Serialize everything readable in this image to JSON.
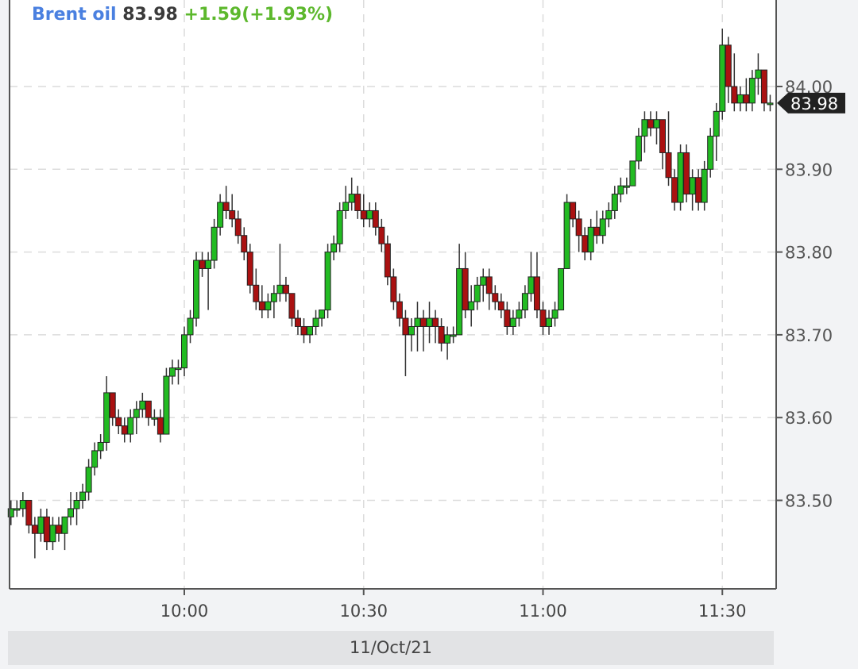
{
  "header": {
    "symbol": "Brent oil",
    "last": "83.98",
    "change": "+1.59(+1.93%)"
  },
  "date_label": "11/Oct/21",
  "colors": {
    "up": "#22bb22",
    "down": "#aa1111",
    "symbol": "#4a80e0",
    "change": "#5cb82c"
  },
  "chart_data": {
    "type": "candlestick",
    "title": "",
    "xlabel": "",
    "ylabel": "",
    "ylim": [
      83.4,
      84.1
    ],
    "xlim": [
      "09:31",
      "11:39"
    ],
    "grid": true,
    "y_ticks": [
      "83.50",
      "83.60",
      "83.70",
      "83.80",
      "83.90",
      "84.00"
    ],
    "x_ticks": [
      "10:00",
      "10:30",
      "11:00",
      "11:30"
    ],
    "last_price_marker": "83.98",
    "columns": [
      "time",
      "open",
      "high",
      "low",
      "close"
    ],
    "candles": [
      [
        "09:31",
        83.48,
        83.5,
        83.47,
        83.49
      ],
      [
        "09:32",
        83.49,
        83.5,
        83.48,
        83.49
      ],
      [
        "09:33",
        83.49,
        83.51,
        83.48,
        83.5
      ],
      [
        "09:34",
        83.5,
        83.5,
        83.46,
        83.47
      ],
      [
        "09:35",
        83.47,
        83.48,
        83.43,
        83.46
      ],
      [
        "09:36",
        83.46,
        83.49,
        83.45,
        83.48
      ],
      [
        "09:37",
        83.48,
        83.49,
        83.44,
        83.45
      ],
      [
        "09:38",
        83.45,
        83.48,
        83.44,
        83.47
      ],
      [
        "09:39",
        83.47,
        83.48,
        83.45,
        83.46
      ],
      [
        "09:40",
        83.46,
        83.48,
        83.44,
        83.48
      ],
      [
        "09:41",
        83.48,
        83.51,
        83.47,
        83.49
      ],
      [
        "09:42",
        83.49,
        83.51,
        83.47,
        83.5
      ],
      [
        "09:43",
        83.5,
        83.52,
        83.49,
        83.51
      ],
      [
        "09:44",
        83.51,
        83.55,
        83.5,
        83.54
      ],
      [
        "09:45",
        83.54,
        83.57,
        83.53,
        83.56
      ],
      [
        "09:46",
        83.56,
        83.58,
        83.55,
        83.57
      ],
      [
        "09:47",
        83.57,
        83.65,
        83.56,
        83.63
      ],
      [
        "09:48",
        83.63,
        83.63,
        83.59,
        83.6
      ],
      [
        "09:49",
        83.6,
        83.61,
        83.58,
        83.59
      ],
      [
        "09:50",
        83.59,
        83.6,
        83.57,
        83.58
      ],
      [
        "09:51",
        83.58,
        83.61,
        83.57,
        83.6
      ],
      [
        "09:52",
        83.6,
        83.62,
        83.58,
        83.61
      ],
      [
        "09:53",
        83.61,
        83.63,
        83.6,
        83.62
      ],
      [
        "09:54",
        83.62,
        83.62,
        83.59,
        83.6
      ],
      [
        "09:55",
        83.6,
        83.61,
        83.59,
        83.6
      ],
      [
        "09:56",
        83.6,
        83.61,
        83.57,
        83.58
      ],
      [
        "09:57",
        83.58,
        83.66,
        83.58,
        83.65
      ],
      [
        "09:58",
        83.65,
        83.67,
        83.64,
        83.66
      ],
      [
        "09:59",
        83.66,
        83.67,
        83.64,
        83.66
      ],
      [
        "10:00",
        83.66,
        83.71,
        83.65,
        83.7
      ],
      [
        "10:01",
        83.7,
        83.73,
        83.69,
        83.72
      ],
      [
        "10:02",
        83.72,
        83.8,
        83.71,
        83.79
      ],
      [
        "10:03",
        83.79,
        83.8,
        83.77,
        83.78
      ],
      [
        "10:04",
        83.78,
        83.8,
        83.73,
        83.79
      ],
      [
        "10:05",
        83.79,
        83.84,
        83.78,
        83.83
      ],
      [
        "10:06",
        83.83,
        83.87,
        83.82,
        83.86
      ],
      [
        "10:07",
        83.86,
        83.88,
        83.84,
        83.85
      ],
      [
        "10:08",
        83.85,
        83.87,
        83.83,
        83.84
      ],
      [
        "10:09",
        83.84,
        83.85,
        83.81,
        83.82
      ],
      [
        "10:10",
        83.82,
        83.83,
        83.79,
        83.8
      ],
      [
        "10:11",
        83.8,
        83.81,
        83.75,
        83.76
      ],
      [
        "10:12",
        83.76,
        83.78,
        83.73,
        83.74
      ],
      [
        "10:13",
        83.74,
        83.76,
        83.72,
        83.73
      ],
      [
        "10:14",
        83.73,
        83.75,
        83.72,
        83.74
      ],
      [
        "10:15",
        83.74,
        83.76,
        83.72,
        83.75
      ],
      [
        "10:16",
        83.75,
        83.81,
        83.74,
        83.76
      ],
      [
        "10:17",
        83.76,
        83.77,
        83.74,
        83.75
      ],
      [
        "10:18",
        83.75,
        83.75,
        83.71,
        83.72
      ],
      [
        "10:19",
        83.72,
        83.73,
        83.7,
        83.71
      ],
      [
        "10:20",
        83.71,
        83.72,
        83.69,
        83.7
      ],
      [
        "10:21",
        83.7,
        83.71,
        83.69,
        83.71
      ],
      [
        "10:22",
        83.71,
        83.73,
        83.7,
        83.72
      ],
      [
        "10:23",
        83.72,
        83.73,
        83.71,
        83.73
      ],
      [
        "10:24",
        83.73,
        83.81,
        83.72,
        83.8
      ],
      [
        "10:25",
        83.8,
        83.82,
        83.79,
        83.81
      ],
      [
        "10:26",
        83.81,
        83.86,
        83.8,
        83.85
      ],
      [
        "10:27",
        83.85,
        83.88,
        83.84,
        83.86
      ],
      [
        "10:28",
        83.86,
        83.89,
        83.85,
        83.87
      ],
      [
        "10:29",
        83.87,
        83.88,
        83.84,
        83.85
      ],
      [
        "10:30",
        83.85,
        83.87,
        83.83,
        83.84
      ],
      [
        "10:31",
        83.84,
        83.86,
        83.83,
        83.85
      ],
      [
        "10:32",
        83.85,
        83.86,
        83.82,
        83.83
      ],
      [
        "10:33",
        83.83,
        83.84,
        83.8,
        83.81
      ],
      [
        "10:34",
        83.81,
        83.82,
        83.76,
        83.77
      ],
      [
        "10:35",
        83.77,
        83.78,
        83.73,
        83.74
      ],
      [
        "10:36",
        83.74,
        83.75,
        83.71,
        83.72
      ],
      [
        "10:37",
        83.72,
        83.73,
        83.65,
        83.7
      ],
      [
        "10:38",
        83.7,
        83.72,
        83.68,
        83.71
      ],
      [
        "10:39",
        83.71,
        83.74,
        83.68,
        83.72
      ],
      [
        "10:40",
        83.72,
        83.73,
        83.68,
        83.71
      ],
      [
        "10:41",
        83.71,
        83.74,
        83.69,
        83.72
      ],
      [
        "10:42",
        83.72,
        83.73,
        83.69,
        83.71
      ],
      [
        "10:43",
        83.71,
        83.72,
        83.68,
        83.69
      ],
      [
        "10:44",
        83.69,
        83.71,
        83.67,
        83.7
      ],
      [
        "10:45",
        83.7,
        83.71,
        83.69,
        83.7
      ],
      [
        "10:46",
        83.7,
        83.81,
        83.7,
        83.78
      ],
      [
        "10:47",
        83.78,
        83.8,
        83.72,
        83.73
      ],
      [
        "10:48",
        83.73,
        83.76,
        83.71,
        83.74
      ],
      [
        "10:49",
        83.74,
        83.77,
        83.73,
        83.76
      ],
      [
        "10:50",
        83.76,
        83.78,
        83.74,
        83.77
      ],
      [
        "10:51",
        83.77,
        83.78,
        83.73,
        83.75
      ],
      [
        "10:52",
        83.75,
        83.76,
        83.73,
        83.74
      ],
      [
        "10:53",
        83.74,
        83.75,
        83.72,
        83.73
      ],
      [
        "10:54",
        83.73,
        83.74,
        83.7,
        83.71
      ],
      [
        "10:55",
        83.71,
        83.73,
        83.7,
        83.72
      ],
      [
        "10:56",
        83.72,
        83.74,
        83.71,
        83.73
      ],
      [
        "10:57",
        83.73,
        83.76,
        83.72,
        83.75
      ],
      [
        "10:58",
        83.75,
        83.8,
        83.74,
        83.77
      ],
      [
        "10:59",
        83.77,
        83.8,
        83.72,
        83.73
      ],
      [
        "11:00",
        83.73,
        83.74,
        83.7,
        83.71
      ],
      [
        "11:01",
        83.71,
        83.73,
        83.7,
        83.72
      ],
      [
        "11:02",
        83.72,
        83.74,
        83.71,
        83.73
      ],
      [
        "11:03",
        83.73,
        83.78,
        83.73,
        83.78
      ],
      [
        "11:04",
        83.78,
        83.87,
        83.78,
        83.86
      ],
      [
        "11:05",
        83.86,
        83.86,
        83.83,
        83.84
      ],
      [
        "11:06",
        83.84,
        83.85,
        83.8,
        83.82
      ],
      [
        "11:07",
        83.82,
        83.83,
        83.79,
        83.8
      ],
      [
        "11:08",
        83.8,
        83.84,
        83.79,
        83.83
      ],
      [
        "11:09",
        83.83,
        83.85,
        83.81,
        83.82
      ],
      [
        "11:10",
        83.82,
        83.85,
        83.81,
        83.84
      ],
      [
        "11:11",
        83.84,
        83.86,
        83.83,
        83.85
      ],
      [
        "11:12",
        83.85,
        83.88,
        83.84,
        83.87
      ],
      [
        "11:13",
        83.87,
        83.89,
        83.86,
        83.88
      ],
      [
        "11:14",
        83.88,
        83.89,
        83.87,
        83.88
      ],
      [
        "11:15",
        83.88,
        83.91,
        83.88,
        83.91
      ],
      [
        "11:16",
        83.91,
        83.95,
        83.9,
        83.94
      ],
      [
        "11:17",
        83.94,
        83.97,
        83.92,
        83.96
      ],
      [
        "11:18",
        83.96,
        83.97,
        83.94,
        83.95
      ],
      [
        "11:19",
        83.95,
        83.97,
        83.93,
        83.96
      ],
      [
        "11:20",
        83.96,
        83.96,
        83.9,
        83.92
      ],
      [
        "11:21",
        83.92,
        83.97,
        83.88,
        83.89
      ],
      [
        "11:22",
        83.89,
        83.9,
        83.85,
        83.86
      ],
      [
        "11:23",
        83.86,
        83.93,
        83.85,
        83.92
      ],
      [
        "11:24",
        83.92,
        83.93,
        83.86,
        83.87
      ],
      [
        "11:25",
        83.87,
        83.9,
        83.85,
        83.89
      ],
      [
        "11:26",
        83.89,
        83.9,
        83.85,
        83.86
      ],
      [
        "11:27",
        83.86,
        83.91,
        83.85,
        83.9
      ],
      [
        "11:28",
        83.9,
        83.95,
        83.89,
        83.94
      ],
      [
        "11:29",
        83.94,
        83.98,
        83.91,
        83.97
      ],
      [
        "11:30",
        83.97,
        84.07,
        83.96,
        84.05
      ],
      [
        "11:31",
        84.05,
        84.06,
        83.98,
        84.0
      ],
      [
        "11:32",
        84.0,
        84.04,
        83.97,
        83.98
      ],
      [
        "11:33",
        83.98,
        84.0,
        83.97,
        83.99
      ],
      [
        "11:34",
        83.99,
        84.01,
        83.97,
        83.98
      ],
      [
        "11:35",
        83.98,
        84.02,
        83.97,
        84.01
      ],
      [
        "11:36",
        84.01,
        84.04,
        83.99,
        84.02
      ],
      [
        "11:37",
        84.02,
        84.02,
        83.97,
        83.98
      ],
      [
        "11:38",
        83.98,
        83.99,
        83.97,
        83.98
      ]
    ]
  }
}
